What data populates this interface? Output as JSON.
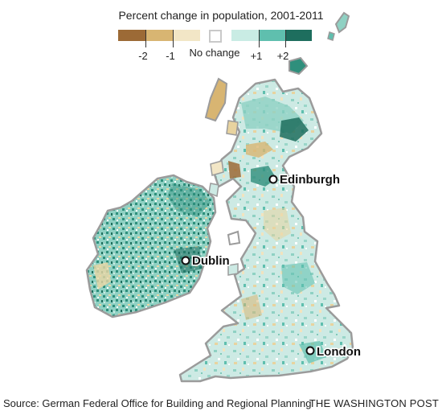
{
  "title": "Percent change in population, 2001-2011",
  "legend": {
    "colors": {
      "minus2": "#9c6a36",
      "minus1": "#d8b572",
      "minus0": "#f2e6c6",
      "nochange": "#ffffff",
      "plus0": "#c9ece4",
      "plus1": "#5fbfae",
      "plus2": "#1e6e5e"
    },
    "ticks": [
      "-2",
      "-1",
      "+1",
      "+2"
    ],
    "no_change_label": "No change"
  },
  "cities": [
    {
      "name": "Edinburgh"
    },
    {
      "name": "Dublin"
    },
    {
      "name": "London"
    }
  ],
  "source": "Source: German Federal Office for Building and Regional Planning",
  "credit": "THE WASHINGTON POST"
}
